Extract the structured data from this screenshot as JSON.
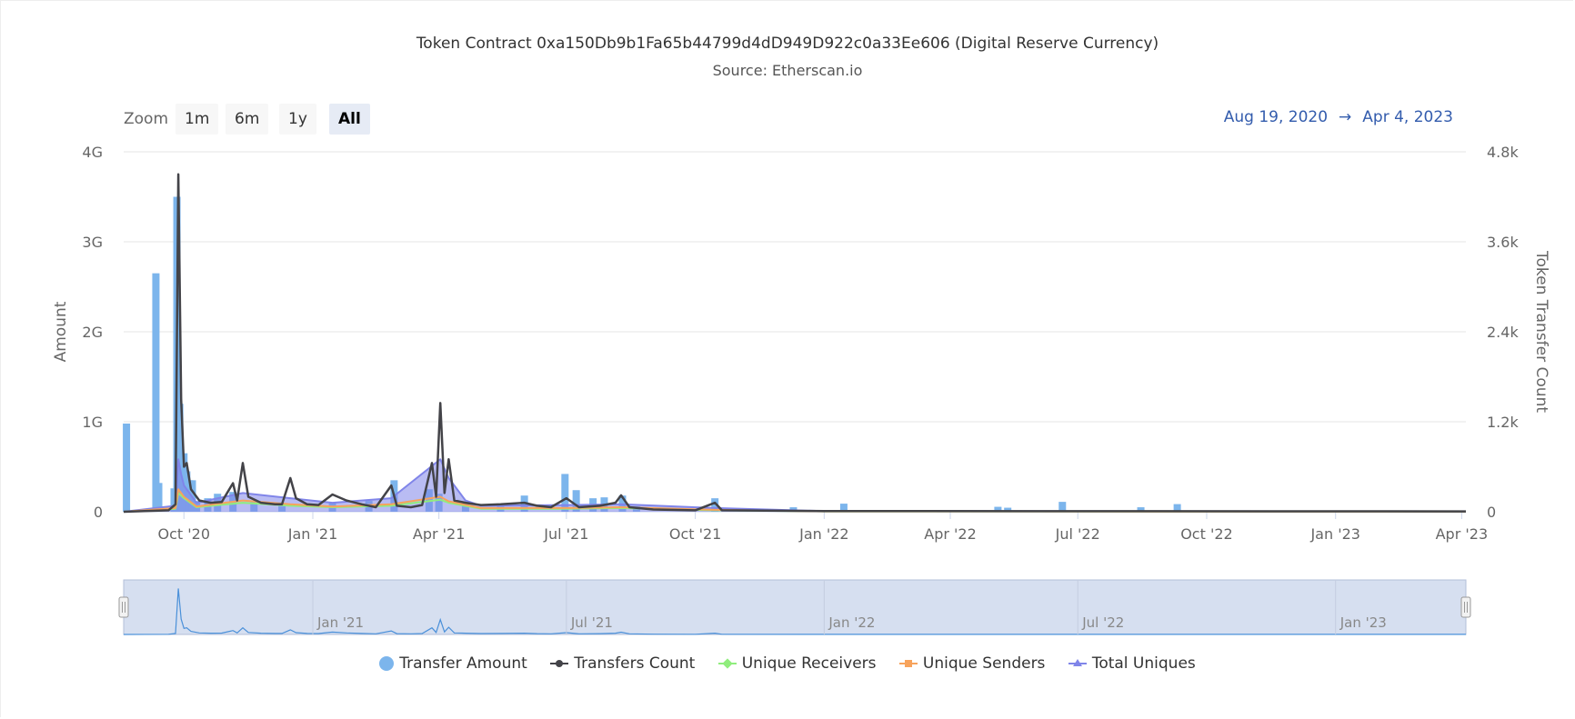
{
  "header": {
    "title": "Token Contract 0xa150Db9b1Fa65b44799d4dD949D922c0a33Ee606 (Digital Reserve Currency)",
    "subtitle": "Source: Etherscan.io"
  },
  "zoom": {
    "label": "Zoom",
    "buttons": [
      "1m",
      "6m",
      "1y",
      "All"
    ],
    "active": "All"
  },
  "range": {
    "from": "Aug 19, 2020",
    "arrow": "→",
    "to": "Apr 4, 2023"
  },
  "navigator": {
    "labels": [
      "Jan '21",
      "Jul '21",
      "Jan '22",
      "Jul '22",
      "Jan '23"
    ]
  },
  "legend": [
    {
      "label": "Transfer Amount",
      "symbol": "circle"
    },
    {
      "label": "Transfers Count",
      "symbol": "line-circle"
    },
    {
      "label": "Unique Receivers",
      "symbol": "line-diamond"
    },
    {
      "label": "Unique Senders",
      "symbol": "line-square"
    },
    {
      "label": "Total Uniques",
      "symbol": "line-triangle"
    }
  ],
  "colors": {
    "transfer_amount": "#7cb5ec",
    "transfers_count": "#434348",
    "unique_receivers": "#90ed7d",
    "unique_senders": "#f7a35c",
    "total_uniques": "#8085e9",
    "range_text": "#335cad"
  },
  "chart_data": {
    "type": "bar+line",
    "title": "Token Contract 0xa150Db9b1Fa65b44799d4dD949D922c0a33Ee606 (Digital Reserve Currency)",
    "subtitle": "Source: Etherscan.io",
    "x_start": "2020-08-19",
    "x_end": "2023-04-04",
    "x_ticks": [
      "Oct '20",
      "Jan '21",
      "Apr '21",
      "Jul '21",
      "Oct '21",
      "Jan '22",
      "Apr '22",
      "Jul '22",
      "Oct '22",
      "Jan '23",
      "Apr '23"
    ],
    "x_tick_dates": [
      "2020-10-01",
      "2021-01-01",
      "2021-04-01",
      "2021-07-01",
      "2021-10-01",
      "2022-01-01",
      "2022-04-01",
      "2022-07-01",
      "2022-10-01",
      "2023-01-01",
      "2023-04-01"
    ],
    "y_left": {
      "label": "Amount",
      "ticks": [
        "0",
        "1G",
        "2G",
        "3G",
        "4G"
      ],
      "tick_values": [
        0,
        1000000000,
        2000000000,
        3000000000,
        4000000000
      ],
      "range": [
        0,
        4000000000
      ]
    },
    "y_right": {
      "label": "Token Transfer Count",
      "ticks": [
        "0",
        "1.2k",
        "2.4k",
        "3.6k",
        "4.8k"
      ],
      "tick_values": [
        0,
        1200,
        2400,
        3600,
        4800
      ],
      "range": [
        0,
        4800
      ]
    },
    "grid": true,
    "legend_position": "bottom",
    "series": [
      {
        "name": "Transfer Amount",
        "axis": "left",
        "kind": "bar",
        "points": [
          [
            "2020-08-21",
            980000000
          ],
          [
            "2020-09-11",
            2650000000
          ],
          [
            "2020-09-13",
            320000000
          ],
          [
            "2020-09-24",
            260000000
          ],
          [
            "2020-09-26",
            3500000000
          ],
          [
            "2020-09-28",
            1200000000
          ],
          [
            "2020-10-01",
            650000000
          ],
          [
            "2020-10-03",
            450000000
          ],
          [
            "2020-10-05",
            350000000
          ],
          [
            "2020-10-07",
            350000000
          ],
          [
            "2020-10-10",
            120000000
          ],
          [
            "2020-10-18",
            150000000
          ],
          [
            "2020-10-25",
            200000000
          ],
          [
            "2020-11-05",
            220000000
          ],
          [
            "2020-11-20",
            120000000
          ],
          [
            "2020-12-10",
            80000000
          ],
          [
            "2021-01-15",
            100000000
          ],
          [
            "2021-02-10",
            120000000
          ],
          [
            "2021-02-28",
            350000000
          ],
          [
            "2021-03-25",
            250000000
          ],
          [
            "2021-04-01",
            200000000
          ],
          [
            "2021-04-20",
            100000000
          ],
          [
            "2021-05-15",
            80000000
          ],
          [
            "2021-06-01",
            180000000
          ],
          [
            "2021-06-30",
            420000000
          ],
          [
            "2021-07-08",
            240000000
          ],
          [
            "2021-07-20",
            150000000
          ],
          [
            "2021-07-28",
            160000000
          ],
          [
            "2021-08-10",
            180000000
          ],
          [
            "2021-08-20",
            60000000
          ],
          [
            "2021-10-15",
            150000000
          ],
          [
            "2021-12-10",
            50000000
          ],
          [
            "2022-01-15",
            90000000
          ],
          [
            "2022-05-05",
            55000000
          ],
          [
            "2022-05-12",
            45000000
          ],
          [
            "2022-06-20",
            110000000
          ],
          [
            "2022-08-15",
            50000000
          ],
          [
            "2022-09-10",
            85000000
          ]
        ]
      },
      {
        "name": "Transfers Count",
        "axis": "right",
        "kind": "line",
        "points": [
          [
            "2020-08-19",
            0
          ],
          [
            "2020-09-20",
            20
          ],
          [
            "2020-09-25",
            100
          ],
          [
            "2020-09-27",
            4500
          ],
          [
            "2020-09-29",
            1500
          ],
          [
            "2020-10-01",
            600
          ],
          [
            "2020-10-03",
            650
          ],
          [
            "2020-10-06",
            300
          ],
          [
            "2020-10-12",
            150
          ],
          [
            "2020-10-20",
            120
          ],
          [
            "2020-10-28",
            130
          ],
          [
            "2020-11-05",
            380
          ],
          [
            "2020-11-08",
            150
          ],
          [
            "2020-11-12",
            650
          ],
          [
            "2020-11-16",
            200
          ],
          [
            "2020-11-25",
            120
          ],
          [
            "2020-12-05",
            100
          ],
          [
            "2020-12-10",
            100
          ],
          [
            "2020-12-16",
            450
          ],
          [
            "2020-12-20",
            180
          ],
          [
            "2020-12-28",
            100
          ],
          [
            "2021-01-05",
            90
          ],
          [
            "2021-01-15",
            230
          ],
          [
            "2021-01-25",
            150
          ],
          [
            "2021-02-05",
            100
          ],
          [
            "2021-02-15",
            60
          ],
          [
            "2021-02-26",
            350
          ],
          [
            "2021-03-02",
            80
          ],
          [
            "2021-03-12",
            60
          ],
          [
            "2021-03-20",
            90
          ],
          [
            "2021-03-27",
            650
          ],
          [
            "2021-03-30",
            200
          ],
          [
            "2021-04-02",
            1450
          ],
          [
            "2021-04-05",
            250
          ],
          [
            "2021-04-08",
            700
          ],
          [
            "2021-04-12",
            150
          ],
          [
            "2021-04-20",
            120
          ],
          [
            "2021-05-01",
            90
          ],
          [
            "2021-05-15",
            100
          ],
          [
            "2021-06-01",
            120
          ],
          [
            "2021-06-10",
            80
          ],
          [
            "2021-06-20",
            60
          ],
          [
            "2021-07-01",
            180
          ],
          [
            "2021-07-10",
            60
          ],
          [
            "2021-07-25",
            80
          ],
          [
            "2021-08-05",
            120
          ],
          [
            "2021-08-09",
            220
          ],
          [
            "2021-08-15",
            60
          ],
          [
            "2021-09-01",
            30
          ],
          [
            "2021-10-01",
            20
          ],
          [
            "2021-10-15",
            120
          ],
          [
            "2021-10-20",
            20
          ],
          [
            "2022-01-01",
            10
          ],
          [
            "2023-04-04",
            5
          ]
        ]
      },
      {
        "name": "Unique Receivers",
        "axis": "right",
        "kind": "line",
        "points": [
          [
            "2020-08-19",
            0
          ],
          [
            "2020-09-25",
            40
          ],
          [
            "2020-09-27",
            250
          ],
          [
            "2020-10-01",
            180
          ],
          [
            "2020-10-10",
            60
          ],
          [
            "2020-11-12",
            120
          ],
          [
            "2020-12-16",
            80
          ],
          [
            "2021-01-15",
            60
          ],
          [
            "2021-02-26",
            80
          ],
          [
            "2021-04-02",
            160
          ],
          [
            "2021-04-08",
            120
          ],
          [
            "2021-05-01",
            40
          ],
          [
            "2021-07-01",
            40
          ],
          [
            "2021-08-09",
            50
          ],
          [
            "2021-10-15",
            20
          ],
          [
            "2022-01-01",
            5
          ],
          [
            "2023-04-04",
            2
          ]
        ]
      },
      {
        "name": "Unique Senders",
        "axis": "right",
        "kind": "line",
        "points": [
          [
            "2020-08-19",
            0
          ],
          [
            "2020-09-25",
            50
          ],
          [
            "2020-09-27",
            300
          ],
          [
            "2020-10-01",
            200
          ],
          [
            "2020-10-10",
            70
          ],
          [
            "2020-11-12",
            150
          ],
          [
            "2020-12-16",
            100
          ],
          [
            "2021-01-15",
            70
          ],
          [
            "2021-02-26",
            100
          ],
          [
            "2021-04-02",
            200
          ],
          [
            "2021-04-08",
            140
          ],
          [
            "2021-05-01",
            50
          ],
          [
            "2021-07-01",
            50
          ],
          [
            "2021-08-09",
            60
          ],
          [
            "2021-10-15",
            25
          ],
          [
            "2022-01-01",
            5
          ],
          [
            "2023-04-04",
            2
          ]
        ]
      },
      {
        "name": "Total Uniques",
        "axis": "right",
        "kind": "line",
        "points": [
          [
            "2020-08-19",
            0
          ],
          [
            "2020-09-25",
            80
          ],
          [
            "2020-09-27",
            700
          ],
          [
            "2020-09-29",
            500
          ],
          [
            "2020-10-01",
            350
          ],
          [
            "2020-10-10",
            120
          ],
          [
            "2020-11-12",
            250
          ],
          [
            "2020-12-16",
            180
          ],
          [
            "2021-01-15",
            120
          ],
          [
            "2021-02-26",
            180
          ],
          [
            "2021-04-02",
            700
          ],
          [
            "2021-04-08",
            450
          ],
          [
            "2021-04-20",
            150
          ],
          [
            "2021-05-01",
            80
          ],
          [
            "2021-07-01",
            90
          ],
          [
            "2021-08-09",
            100
          ],
          [
            "2021-10-15",
            50
          ],
          [
            "2022-01-01",
            8
          ],
          [
            "2023-04-04",
            4
          ]
        ]
      }
    ]
  }
}
